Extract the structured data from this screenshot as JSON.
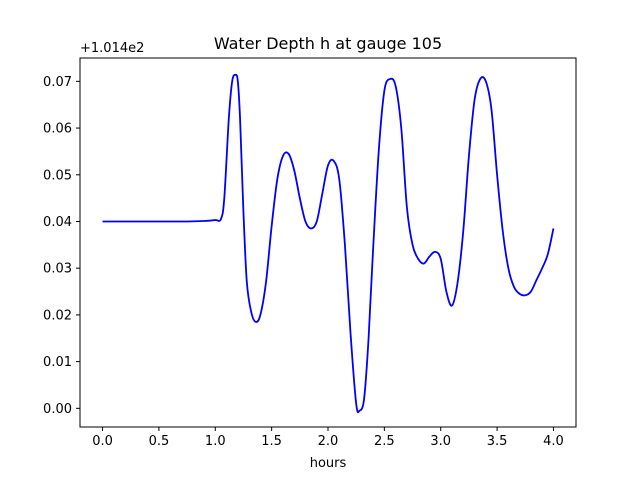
{
  "chart_data": {
    "type": "line",
    "title": "Water Depth h at gauge 105",
    "xlabel": "hours",
    "ylabel": "",
    "offset_label": "+1.014e2",
    "xlim": [
      -0.2,
      4.2
    ],
    "ylim": [
      -0.004,
      0.075
    ],
    "xticks": [
      0.0,
      0.5,
      1.0,
      1.5,
      2.0,
      2.5,
      3.0,
      3.5,
      4.0
    ],
    "xtick_labels": [
      "0.0",
      "0.5",
      "1.0",
      "1.5",
      "2.0",
      "2.5",
      "3.0",
      "3.5",
      "4.0"
    ],
    "yticks": [
      0.0,
      0.01,
      0.02,
      0.03,
      0.04,
      0.05,
      0.06,
      0.07
    ],
    "ytick_labels": [
      "0.00",
      "0.01",
      "0.02",
      "0.03",
      "0.04",
      "0.05",
      "0.06",
      "0.07"
    ],
    "grid": false,
    "series": [
      {
        "color": "#0000ff",
        "x": [
          0.0,
          0.25,
          0.5,
          0.75,
          0.9,
          1.0,
          1.05,
          1.08,
          1.12,
          1.15,
          1.18,
          1.2,
          1.22,
          1.25,
          1.28,
          1.32,
          1.36,
          1.4,
          1.45,
          1.5,
          1.55,
          1.6,
          1.65,
          1.7,
          1.75,
          1.8,
          1.85,
          1.9,
          1.95,
          2.0,
          2.05,
          2.1,
          2.15,
          2.2,
          2.25,
          2.28,
          2.32,
          2.36,
          2.4,
          2.45,
          2.5,
          2.55,
          2.6,
          2.65,
          2.7,
          2.75,
          2.8,
          2.85,
          2.9,
          2.95,
          3.0,
          3.05,
          3.1,
          3.15,
          3.2,
          3.25,
          3.3,
          3.35,
          3.4,
          3.45,
          3.5,
          3.55,
          3.6,
          3.65,
          3.7,
          3.75,
          3.8,
          3.85,
          3.9,
          3.95,
          4.0
        ],
        "y": [
          0.04,
          0.04,
          0.04,
          0.04,
          0.0401,
          0.0403,
          0.0405,
          0.045,
          0.062,
          0.07,
          0.0714,
          0.07,
          0.062,
          0.042,
          0.027,
          0.0205,
          0.0185,
          0.02,
          0.027,
          0.039,
          0.049,
          0.054,
          0.0545,
          0.051,
          0.045,
          0.04,
          0.0385,
          0.04,
          0.046,
          0.052,
          0.053,
          0.049,
          0.035,
          0.016,
          0.001,
          -0.0005,
          0.002,
          0.015,
          0.034,
          0.055,
          0.068,
          0.0705,
          0.069,
          0.06,
          0.043,
          0.035,
          0.032,
          0.031,
          0.0325,
          0.0335,
          0.032,
          0.025,
          0.022,
          0.027,
          0.038,
          0.054,
          0.066,
          0.0705,
          0.07,
          0.064,
          0.05,
          0.038,
          0.03,
          0.026,
          0.0245,
          0.0242,
          0.025,
          0.0275,
          0.03,
          0.033,
          0.0385
        ]
      }
    ]
  }
}
